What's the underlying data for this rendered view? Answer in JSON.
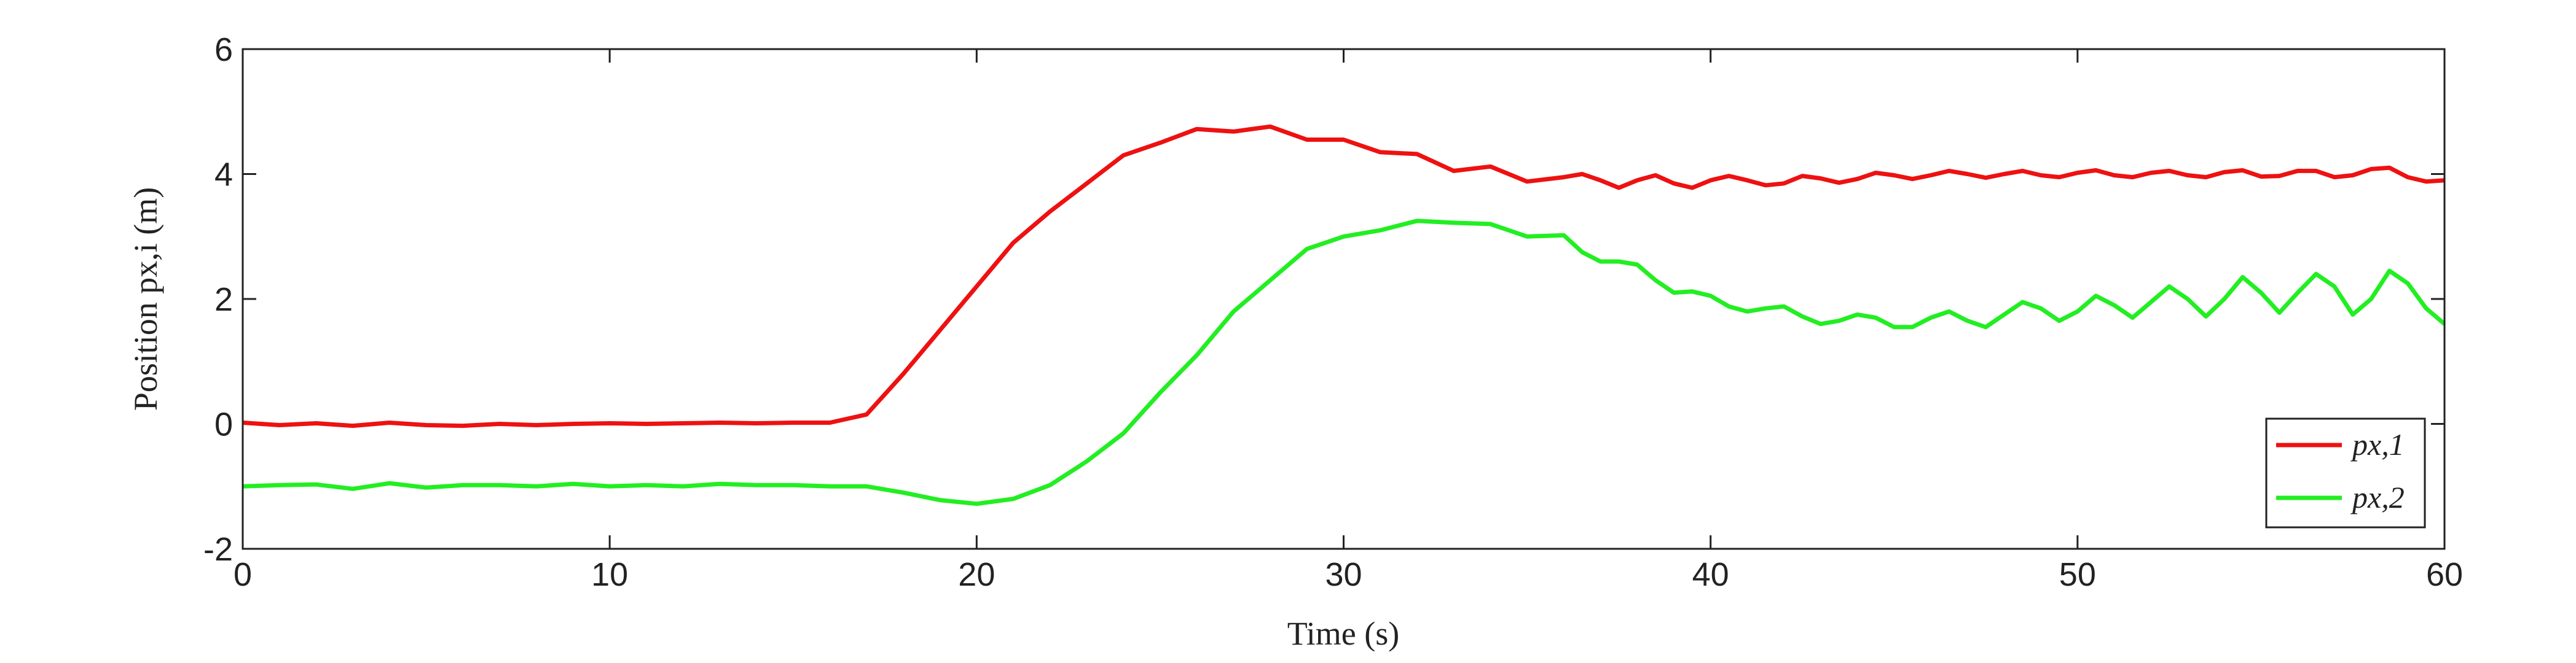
{
  "chart_data": {
    "type": "line",
    "xlabel": "Time (s)",
    "ylabel": "Position px,i (m)",
    "x": [
      0,
      1,
      2,
      3,
      4,
      5,
      6,
      7,
      8,
      9,
      10,
      11,
      12,
      13,
      14,
      15,
      16,
      17,
      18,
      19,
      20,
      21,
      22,
      23,
      24,
      25,
      26,
      27,
      28,
      29,
      30,
      31,
      32,
      33,
      34,
      35,
      36,
      36.5,
      37,
      37.5,
      38,
      38.5,
      39,
      39.5,
      40,
      40.5,
      41,
      41.5,
      42,
      42.5,
      43,
      43.5,
      44,
      44.5,
      45,
      45.5,
      46,
      46.5,
      47,
      47.5,
      48,
      48.5,
      49,
      49.5,
      50,
      50.5,
      51,
      51.5,
      52,
      52.5,
      53,
      53.5,
      54,
      54.5,
      55,
      55.5,
      56,
      56.5,
      57,
      57.5,
      58,
      58.5,
      59,
      59.5,
      60
    ],
    "series": [
      {
        "name": "px,1",
        "color": "#ee1111",
        "values": [
          0.02,
          -0.02,
          0.01,
          -0.03,
          0.02,
          -0.02,
          -0.03,
          0,
          -0.02,
          0,
          0.01,
          0,
          0.01,
          0.02,
          0.01,
          0.02,
          0.02,
          0.15,
          0.8,
          1.5,
          2.2,
          2.9,
          3.4,
          3.85,
          4.3,
          4.5,
          4.72,
          4.68,
          4.76,
          4.55,
          4.55,
          4.35,
          4.32,
          4.05,
          4.12,
          3.88,
          3.95,
          4.0,
          3.9,
          3.78,
          3.9,
          3.98,
          3.85,
          3.78,
          3.9,
          3.97,
          3.9,
          3.82,
          3.85,
          3.97,
          3.93,
          3.86,
          3.92,
          4.02,
          3.98,
          3.92,
          3.98,
          4.05,
          4.0,
          3.94,
          4.0,
          4.05,
          3.98,
          3.95,
          4.02,
          4.06,
          3.98,
          3.95,
          4.02,
          4.05,
          3.98,
          3.95,
          4.03,
          4.06,
          3.96,
          3.97,
          4.05,
          4.05,
          3.95,
          3.98,
          4.08,
          4.1,
          3.95,
          3.88,
          3.9
        ]
      },
      {
        "name": "px,2",
        "color": "#22ee22",
        "values": [
          -1.0,
          -0.98,
          -0.97,
          -1.04,
          -0.95,
          -1.02,
          -0.98,
          -0.98,
          -1.0,
          -0.96,
          -1.0,
          -0.98,
          -1.0,
          -0.96,
          -0.98,
          -0.98,
          -1.0,
          -1.0,
          -1.1,
          -1.22,
          -1.28,
          -1.2,
          -0.98,
          -0.6,
          -0.15,
          0.5,
          1.1,
          1.8,
          2.3,
          2.8,
          3.0,
          3.1,
          3.25,
          3.22,
          3.2,
          3.0,
          3.02,
          2.75,
          2.6,
          2.6,
          2.55,
          2.3,
          2.1,
          2.12,
          2.05,
          1.88,
          1.8,
          1.85,
          1.88,
          1.72,
          1.6,
          1.65,
          1.75,
          1.7,
          1.55,
          1.55,
          1.7,
          1.8,
          1.65,
          1.55,
          1.75,
          1.95,
          1.85,
          1.65,
          1.8,
          2.05,
          1.9,
          1.7,
          1.95,
          2.2,
          2.0,
          1.72,
          2.0,
          2.35,
          2.1,
          1.78,
          2.1,
          2.4,
          2.2,
          1.75,
          2.0,
          2.45,
          2.25,
          1.85,
          1.6
        ]
      }
    ],
    "xlim": [
      0,
      60
    ],
    "xticks": [
      0,
      10,
      20,
      30,
      40,
      50,
      60
    ],
    "ylim": [
      -2,
      6
    ],
    "yticks": [
      -2,
      0,
      2,
      4,
      6
    ],
    "legend": "lower right"
  }
}
